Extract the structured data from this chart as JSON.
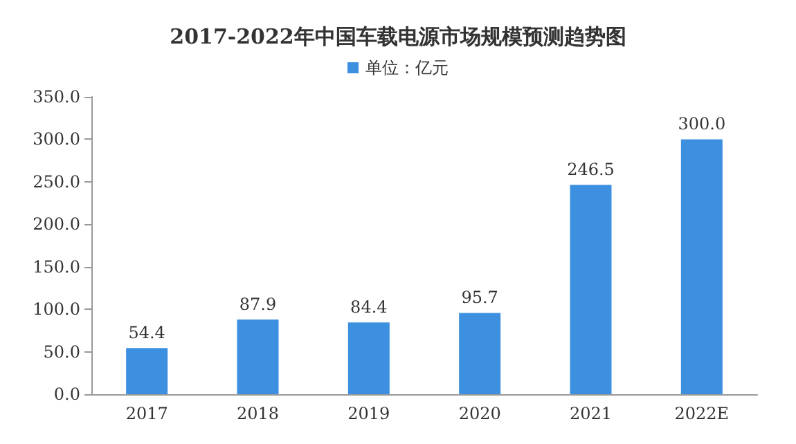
{
  "chart_data": {
    "type": "bar",
    "title": "2017-2022年中国车载电源市场规模预测趋势图",
    "categories": [
      "2017",
      "2018",
      "2019",
      "2020",
      "2021",
      "2022E"
    ],
    "series": [
      {
        "name": "单位：亿元",
        "color": "#3d8fe0",
        "values": [
          54.4,
          87.9,
          84.4,
          95.7,
          246.5,
          300.0
        ],
        "value_labels": [
          "54.4",
          "87.9",
          "84.4",
          "95.7",
          "246.5",
          "300.0"
        ]
      }
    ],
    "ylim": [
      0,
      350
    ],
    "yticks": [
      {
        "value": 0,
        "label": "0.0"
      },
      {
        "value": 50,
        "label": "50.0"
      },
      {
        "value": 100,
        "label": "100.0"
      },
      {
        "value": 150,
        "label": "150.0"
      },
      {
        "value": 200,
        "label": "200.0"
      },
      {
        "value": 250,
        "label": "250.0"
      },
      {
        "value": 300,
        "label": "300.0"
      },
      {
        "value": 350,
        "label": "350.0"
      }
    ],
    "grid": false,
    "legend": "top"
  }
}
